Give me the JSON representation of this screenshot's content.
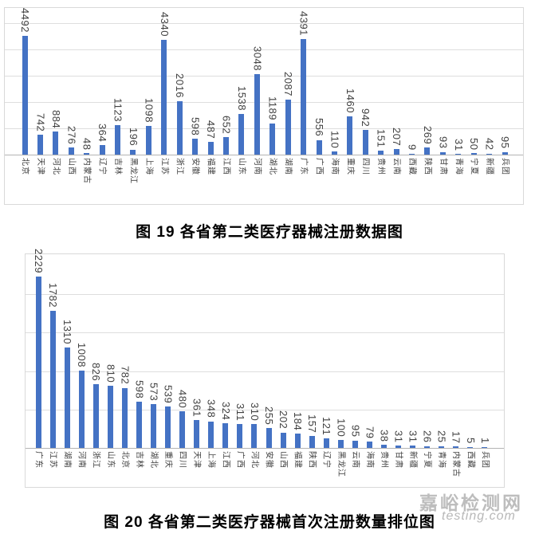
{
  "figure19": {
    "caption": "图 19 各省第二类医疗器械注册数据图"
  },
  "figure20": {
    "caption": "图 20 各省第二类医疗器械首次注册数量排位图"
  },
  "watermark": {
    "site_name": "嘉峪检测网",
    "domain": "testing.com"
  },
  "colors": {
    "bar": "#4472c4",
    "gridline": "#dedede",
    "axis_line": "#b3b3b3",
    "label_text": "#404040",
    "chart_border": "#d9d9d9",
    "watermark_text": "#b2b2b2"
  },
  "chart_data": [
    {
      "id": "chart19",
      "type": "bar",
      "title": "",
      "xlabel": "",
      "ylabel": "",
      "legend": "none",
      "grid": "horizontal",
      "ylim": [
        0,
        5500
      ],
      "grid_step": 1000,
      "data_label_rotation": 90,
      "category_rotation": 90,
      "categories": [
        "北京",
        "天津",
        "河北",
        "山西",
        "内蒙古",
        "辽宁",
        "吉林",
        "黑龙江",
        "上海",
        "江苏",
        "浙江",
        "安徽",
        "福建",
        "江西",
        "山东",
        "河南",
        "湖北",
        "湖南",
        "广东",
        "广西",
        "海南",
        "重庆",
        "四川",
        "贵州",
        "云南",
        "西藏",
        "陕西",
        "甘肃",
        "青海",
        "宁夏",
        "新疆",
        "兵团"
      ],
      "values": [
        4492,
        742,
        884,
        276,
        48,
        364,
        1123,
        196,
        1098,
        4340,
        2016,
        598,
        487,
        652,
        1538,
        3048,
        1189,
        2087,
        4391,
        556,
        110,
        1460,
        942,
        151,
        207,
        9,
        269,
        93,
        31,
        50,
        42,
        95
      ]
    },
    {
      "id": "chart20",
      "type": "bar",
      "title": "",
      "xlabel": "",
      "ylabel": "",
      "legend": "none",
      "grid": "horizontal",
      "ylim": [
        0,
        2500
      ],
      "grid_step": 500,
      "data_label_rotation": 90,
      "category_rotation": 90,
      "categories": [
        "广东",
        "江苏",
        "湖南",
        "河南",
        "浙江",
        "山东",
        "北京",
        "吉林",
        "湖北",
        "重庆",
        "四川",
        "天津",
        "上海",
        "江西",
        "广西",
        "河北",
        "安徽",
        "山西",
        "福建",
        "陕西",
        "辽宁",
        "黑龙江",
        "云南",
        "海南",
        "贵州",
        "甘肃",
        "新疆",
        "宁夏",
        "青海",
        "内蒙古",
        "西藏",
        "兵团"
      ],
      "values": [
        2229,
        1782,
        1310,
        1008,
        826,
        810,
        782,
        598,
        573,
        539,
        480,
        361,
        348,
        324,
        311,
        310,
        255,
        202,
        184,
        157,
        121,
        100,
        95,
        79,
        38,
        31,
        31,
        26,
        25,
        17,
        5,
        1
      ]
    }
  ]
}
